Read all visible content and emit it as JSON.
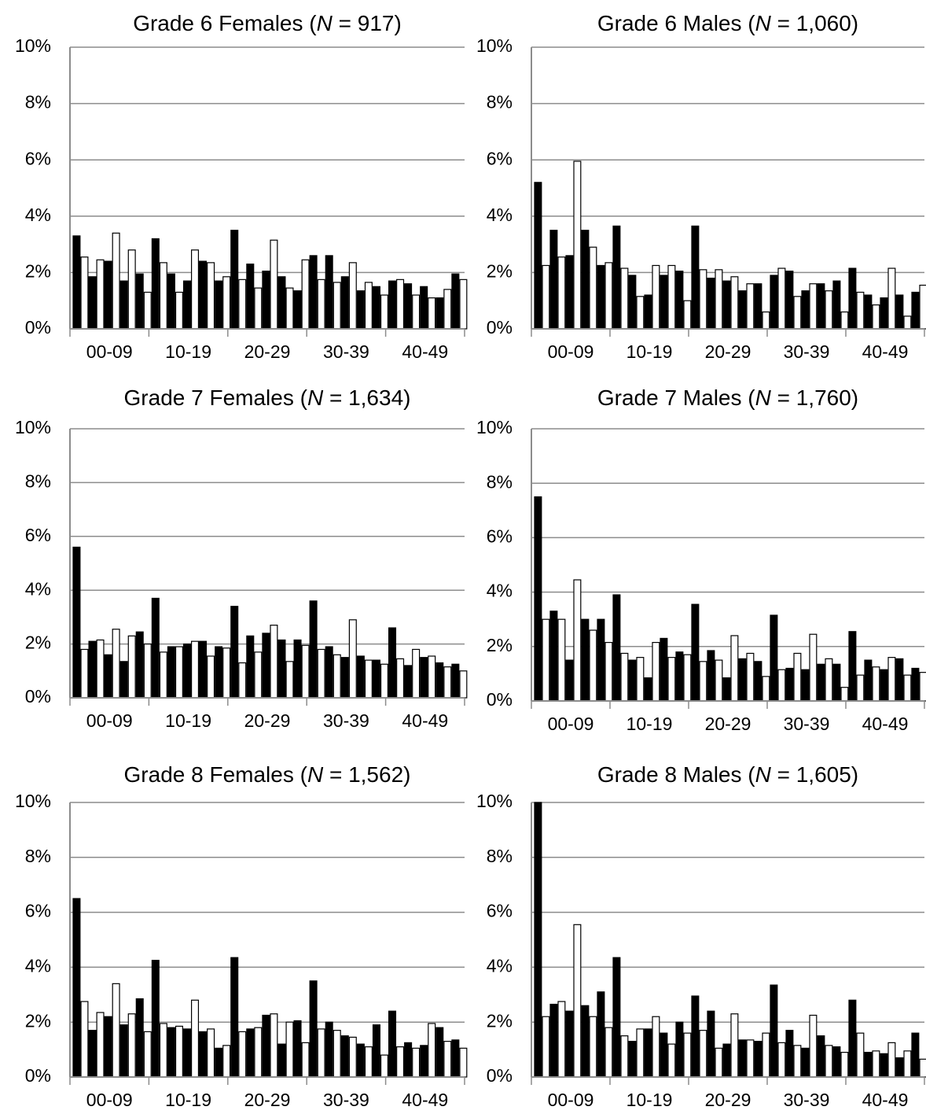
{
  "chart_data": [
    {
      "type": "bar",
      "title": [
        "Grade 6 Females (",
        "N",
        " = 917)"
      ],
      "group_labels": [
        "00-09",
        "10-19",
        "20-29",
        "30-39",
        "40-49"
      ],
      "values": [
        3.3,
        2.55,
        1.85,
        2.45,
        2.4,
        3.4,
        1.7,
        2.8,
        1.95,
        1.3,
        3.2,
        2.35,
        1.95,
        1.3,
        1.7,
        2.8,
        2.4,
        2.35,
        1.7,
        1.85,
        3.5,
        1.75,
        2.3,
        1.45,
        2.05,
        3.15,
        1.85,
        1.45,
        1.35,
        2.45,
        2.6,
        1.75,
        2.6,
        1.65,
        1.85,
        2.35,
        1.35,
        1.65,
        1.5,
        1.2,
        1.7,
        1.75,
        1.6,
        1.2,
        1.5,
        1.1,
        1.1,
        1.4,
        1.95,
        1.75
      ],
      "colors": [
        "#000000",
        "#ffffff"
      ],
      "ylim": [
        0,
        10
      ],
      "yticks": [
        {
          "value": 0,
          "label": "0%"
        },
        {
          "value": 2,
          "label": "2%"
        },
        {
          "value": 4,
          "label": "4%"
        },
        {
          "value": 6,
          "label": "6%"
        },
        {
          "value": 8,
          "label": "8%"
        },
        {
          "value": 10,
          "label": "10%"
        }
      ],
      "grid": true
    },
    {
      "type": "bar",
      "title": [
        "Grade 6 Males (",
        "N",
        " = 1,060)"
      ],
      "group_labels": [
        "00-09",
        "10-19",
        "20-29",
        "30-39",
        "40-49"
      ],
      "values": [
        5.2,
        2.25,
        3.5,
        2.55,
        2.6,
        5.95,
        3.5,
        2.9,
        2.25,
        2.35,
        3.65,
        2.15,
        1.9,
        1.15,
        1.2,
        2.25,
        1.9,
        2.25,
        2.05,
        1.0,
        3.65,
        2.1,
        1.8,
        2.1,
        1.7,
        1.85,
        1.35,
        1.6,
        1.6,
        0.6,
        1.9,
        2.15,
        2.05,
        1.15,
        1.35,
        1.6,
        1.6,
        1.35,
        1.7,
        0.6,
        2.15,
        1.3,
        1.2,
        0.85,
        1.1,
        2.15,
        1.2,
        0.45,
        1.3,
        1.55
      ],
      "colors": [
        "#000000",
        "#ffffff"
      ],
      "ylim": [
        0,
        10
      ],
      "yticks": [
        {
          "value": 0,
          "label": "0%"
        },
        {
          "value": 2,
          "label": "2%"
        },
        {
          "value": 4,
          "label": "4%"
        },
        {
          "value": 6,
          "label": "6%"
        },
        {
          "value": 8,
          "label": "8%"
        },
        {
          "value": 10,
          "label": "10%"
        }
      ],
      "grid": true
    },
    {
      "type": "bar",
      "title": [
        "Grade 7 Females (",
        "N",
        " = 1,634)"
      ],
      "group_labels": [
        "00-09",
        "10-19",
        "20-29",
        "30-39",
        "40-49"
      ],
      "values": [
        5.6,
        1.8,
        2.1,
        2.15,
        1.6,
        2.55,
        1.35,
        2.3,
        2.45,
        2.0,
        3.7,
        1.7,
        1.9,
        1.9,
        2.0,
        2.1,
        2.1,
        1.55,
        1.9,
        1.85,
        3.4,
        1.3,
        2.3,
        1.7,
        2.4,
        2.7,
        2.15,
        1.35,
        2.15,
        1.95,
        3.6,
        1.8,
        1.9,
        1.6,
        1.5,
        2.9,
        1.55,
        1.4,
        1.4,
        1.25,
        2.6,
        1.45,
        1.2,
        1.8,
        1.5,
        1.55,
        1.3,
        1.15,
        1.25,
        1.0
      ],
      "colors": [
        "#000000",
        "#ffffff"
      ],
      "ylim": [
        0,
        10
      ],
      "yticks": [
        {
          "value": 0,
          "label": "0%"
        },
        {
          "value": 2,
          "label": "2%"
        },
        {
          "value": 4,
          "label": "4%"
        },
        {
          "value": 6,
          "label": "6%"
        },
        {
          "value": 8,
          "label": "8%"
        },
        {
          "value": 10,
          "label": "10%"
        }
      ],
      "grid": true
    },
    {
      "type": "bar",
      "title": [
        "Grade 7 Males (",
        "N",
        " = 1,760)"
      ],
      "group_labels": [
        "00-09",
        "10-19",
        "20-29",
        "30-39",
        "40-49"
      ],
      "values": [
        7.5,
        3.0,
        3.3,
        3.0,
        1.5,
        4.45,
        3.0,
        2.6,
        3.0,
        2.15,
        3.9,
        1.75,
        1.5,
        1.6,
        0.85,
        2.15,
        2.3,
        1.6,
        1.8,
        1.7,
        3.55,
        1.45,
        1.85,
        1.5,
        0.85,
        2.4,
        1.55,
        1.75,
        1.45,
        0.9,
        3.15,
        1.15,
        1.2,
        1.75,
        1.15,
        2.45,
        1.35,
        1.55,
        1.35,
        0.5,
        2.55,
        0.95,
        1.5,
        1.25,
        1.15,
        1.6,
        1.55,
        0.95,
        1.2,
        1.05
      ],
      "colors": [
        "#000000",
        "#ffffff"
      ],
      "ylim": [
        0,
        10
      ],
      "yticks": [
        {
          "value": 0,
          "label": "0%"
        },
        {
          "value": 2,
          "label": "2%"
        },
        {
          "value": 4,
          "label": "4%"
        },
        {
          "value": 6,
          "label": "6%"
        },
        {
          "value": 8,
          "label": "8%"
        },
        {
          "value": 10,
          "label": "10%"
        }
      ],
      "grid": true
    },
    {
      "type": "bar",
      "title": [
        "Grade 8 Females (",
        "N",
        " = 1,562)"
      ],
      "group_labels": [
        "00-09",
        "10-19",
        "20-29",
        "30-39",
        "40-49"
      ],
      "values": [
        6.5,
        2.75,
        1.7,
        2.35,
        2.2,
        3.4,
        1.9,
        2.3,
        2.85,
        1.65,
        4.25,
        1.95,
        1.8,
        1.85,
        1.75,
        2.8,
        1.65,
        1.75,
        1.05,
        1.15,
        4.35,
        1.65,
        1.75,
        1.8,
        2.25,
        2.3,
        1.2,
        2.0,
        2.05,
        1.25,
        3.5,
        1.75,
        2.0,
        1.7,
        1.5,
        1.45,
        1.2,
        1.1,
        1.9,
        0.8,
        2.4,
        1.1,
        1.25,
        1.05,
        1.15,
        1.95,
        1.8,
        1.3,
        1.35,
        1.05
      ],
      "colors": [
        "#000000",
        "#ffffff"
      ],
      "ylim": [
        0,
        10
      ],
      "yticks": [
        {
          "value": 0,
          "label": "0%"
        },
        {
          "value": 2,
          "label": "2%"
        },
        {
          "value": 4,
          "label": "4%"
        },
        {
          "value": 6,
          "label": "6%"
        },
        {
          "value": 8,
          "label": "8%"
        },
        {
          "value": 10,
          "label": "10%"
        }
      ],
      "grid": true
    },
    {
      "type": "bar",
      "title": [
        "Grade 8 Males (",
        "N",
        " = 1,605)"
      ],
      "group_labels": [
        "00-09",
        "10-19",
        "20-29",
        "30-39",
        "40-49"
      ],
      "values": [
        10.0,
        2.2,
        2.65,
        2.75,
        2.4,
        5.55,
        2.6,
        2.2,
        3.1,
        1.8,
        4.35,
        1.5,
        1.3,
        1.75,
        1.75,
        2.2,
        1.6,
        1.2,
        2.0,
        1.6,
        2.95,
        1.7,
        2.4,
        1.05,
        1.2,
        2.3,
        1.35,
        1.35,
        1.3,
        1.6,
        3.35,
        1.25,
        1.7,
        1.15,
        1.05,
        2.25,
        1.5,
        1.15,
        1.1,
        0.9,
        2.8,
        1.6,
        0.9,
        0.95,
        0.85,
        1.25,
        0.7,
        0.95,
        1.6,
        0.65
      ],
      "colors": [
        "#000000",
        "#ffffff"
      ],
      "ylim": [
        0,
        10
      ],
      "yticks": [
        {
          "value": 0,
          "label": "0%"
        },
        {
          "value": 2,
          "label": "2%"
        },
        {
          "value": 4,
          "label": "4%"
        },
        {
          "value": 6,
          "label": "6%"
        },
        {
          "value": 8,
          "label": "8%"
        },
        {
          "value": 10,
          "label": "10%"
        }
      ],
      "grid": true
    }
  ]
}
